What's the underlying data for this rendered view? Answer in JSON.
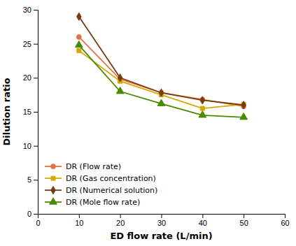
{
  "chart_data": {
    "type": "line",
    "x": [
      10,
      20,
      30,
      40,
      50
    ],
    "series": [
      {
        "name": "DR (Flow rate)",
        "color": "#E87040",
        "marker": "circle",
        "values": [
          26.0,
          19.8,
          17.8,
          16.8,
          15.8
        ]
      },
      {
        "name": "DR (Gas concentration)",
        "color": "#D4A800",
        "marker": "square",
        "values": [
          24.0,
          19.5,
          17.5,
          15.5,
          16.1
        ]
      },
      {
        "name": "DR (Numerical solution)",
        "color": "#7B3A10",
        "marker": "diamond",
        "values": [
          29.0,
          20.0,
          17.8,
          16.7,
          16.0
        ]
      },
      {
        "name": "DR (Mole flow rate)",
        "color": "#4A8A00",
        "marker": "triangle",
        "values": [
          24.8,
          18.0,
          16.2,
          14.5,
          14.2
        ]
      }
    ],
    "xlabel": "ED flow rate (L/min)",
    "ylabel": "Dilution ratio",
    "xlim": [
      0,
      60
    ],
    "ylim": [
      0,
      30
    ],
    "xticks": [
      0,
      10,
      20,
      30,
      40,
      50,
      60
    ],
    "yticks": [
      0,
      5,
      10,
      15,
      20,
      25,
      30
    ],
    "legend": "lower left"
  }
}
